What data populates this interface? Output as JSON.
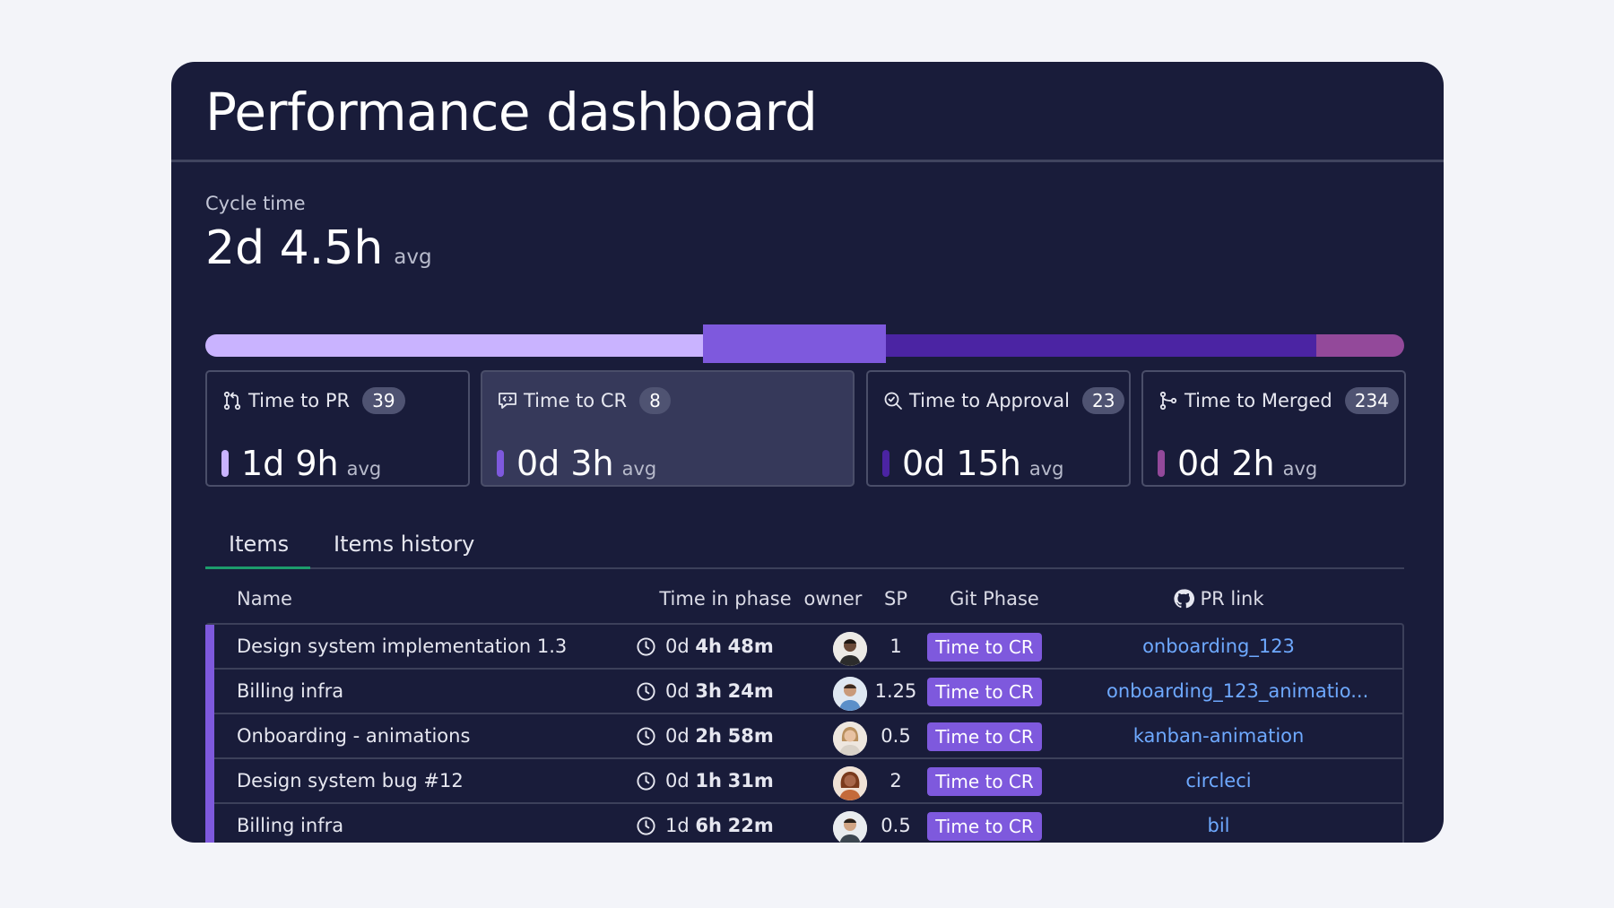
{
  "title": "Performance dashboard",
  "cycle": {
    "label": "Cycle time",
    "value": "2d 4.5h",
    "avg": "avg"
  },
  "progress_segments": [
    {
      "color": "#c9b3ff",
      "share": 0.415
    },
    {
      "color": "#7e59dd",
      "share": 0.153
    },
    {
      "color": "#4b24a3",
      "share": 0.359
    },
    {
      "color": "#93499a",
      "share": 0.073
    }
  ],
  "cards": [
    {
      "icon": "pull-request-icon",
      "title": "Time to PR",
      "count": "39",
      "value": "1d 9h",
      "avg": "avg",
      "color": "#c9b3ff"
    },
    {
      "icon": "code-review-icon",
      "title": "Time to CR",
      "count": "8",
      "value": "0d 3h",
      "avg": "avg",
      "color": "#7e59dd",
      "active": true
    },
    {
      "icon": "approval-search-icon",
      "title": "Time to Approval",
      "count": "23",
      "value": "0d 15h",
      "avg": "avg",
      "color": "#4b24a3"
    },
    {
      "icon": "merge-icon",
      "title": "Time to Merged",
      "count": "234",
      "value": "0d 2h",
      "avg": "avg",
      "color": "#93499a"
    }
  ],
  "tabs": [
    {
      "label": "Items",
      "active": true
    },
    {
      "label": "Items history",
      "active": false
    }
  ],
  "table": {
    "headers": {
      "name": "Name",
      "time": "Time in phase",
      "owner": "owner",
      "sp": "SP",
      "git": "Git Phase",
      "pr": "PR link"
    },
    "rows": [
      {
        "name": "Design system implementation 1.3",
        "t1": "0d",
        "t2": "4h",
        "t3": "48m",
        "sp": "1",
        "git": "Time to CR",
        "pr": "onboarding_123"
      },
      {
        "name": "Billing infra",
        "t1": "0d",
        "t2": "3h",
        "t3": "24m",
        "sp": "1.25",
        "git": "Time to CR",
        "pr": "onboarding_123_animatio..."
      },
      {
        "name": "Onboarding - animations",
        "t1": "0d",
        "t2": "2h",
        "t3": "58m",
        "sp": "0.5",
        "git": "Time to CR",
        "pr": "kanban-animation"
      },
      {
        "name": "Design system bug #12",
        "t1": "0d",
        "t2": "1h",
        "t3": "31m",
        "sp": "2",
        "git": "Time to CR",
        "pr": "circleci"
      },
      {
        "name": "Billing infra",
        "t1": "1d",
        "t2": "6h",
        "t3": "22m",
        "sp": "0.5",
        "git": "Time to CR",
        "pr": "bil"
      }
    ]
  }
}
